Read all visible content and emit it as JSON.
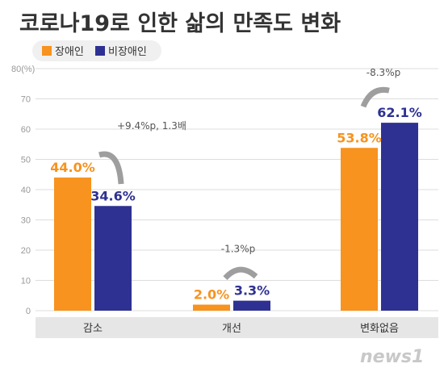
{
  "chart_data": {
    "type": "bar",
    "title": "코로나19로 인한 삶의 만족도 변화",
    "y_unit_label": "80(%)",
    "ylim": [
      0,
      80
    ],
    "y_ticks": [
      0,
      10,
      20,
      30,
      40,
      50,
      60,
      70
    ],
    "grid": true,
    "legend_position": "top-left",
    "categories": [
      "감소",
      "개선",
      "변화없음"
    ],
    "series": [
      {
        "name": "장애인",
        "values": [
          44.0,
          2.0,
          53.8
        ],
        "labels": [
          "44.0%",
          "2.0%",
          "53.8%"
        ],
        "color": "#F7931E"
      },
      {
        "name": "비장애인",
        "values": [
          34.6,
          3.3,
          62.1
        ],
        "labels": [
          "34.6%",
          "3.3%",
          "62.1%"
        ],
        "color": "#2E3192"
      }
    ],
    "annotations": [
      {
        "category": "감소",
        "text": "+9.4%p, 1.3배"
      },
      {
        "category": "개선",
        "text": "-1.3%p"
      },
      {
        "category": "변화없음",
        "text": "-8.3%p"
      }
    ],
    "colors": {
      "category_band": "#E6E6E6",
      "text_dark": "#333333",
      "tick": "#999999",
      "arrow": "#9E9E9E",
      "legend_bg": "#F0F0F0"
    }
  },
  "watermark": "news1"
}
